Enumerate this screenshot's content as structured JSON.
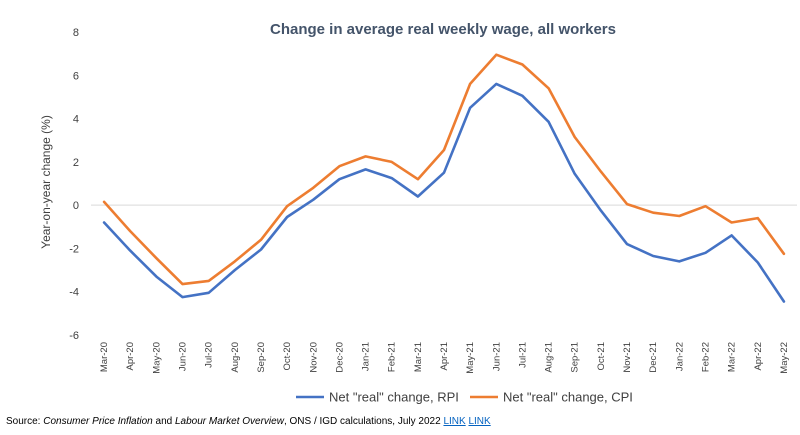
{
  "chart_data": {
    "type": "line",
    "title": "Change in average real weekly wage, all workers",
    "ylabel": "Year-on-year change (%)",
    "ylim": [
      -6,
      8
    ],
    "yticks": [
      -6,
      -4,
      -2,
      0,
      2,
      4,
      6,
      8
    ],
    "grid": false,
    "legend_position": "bottom",
    "categories": [
      "Mar-20",
      "Apr-20",
      "May-20",
      "Jun-20",
      "Jul-20",
      "Aug-20",
      "Sep-20",
      "Oct-20",
      "Nov-20",
      "Dec-20",
      "Jan-21",
      "Feb-21",
      "Mar-21",
      "Apr-21",
      "May-21",
      "Jun-21",
      "Jul-21",
      "Aug-21",
      "Sep-21",
      "Oct-21",
      "Nov-21",
      "Dec-21",
      "Jan-22",
      "Feb-22",
      "Mar-22",
      "Apr-22",
      "May-22"
    ],
    "series": [
      {
        "name": "Net \"real\" change, RPI",
        "color": "#4472c4",
        "values": [
          -0.8,
          -2.1,
          -3.3,
          -4.25,
          -4.05,
          -3.0,
          -2.05,
          -0.55,
          0.25,
          1.2,
          1.65,
          1.25,
          0.4,
          1.5,
          4.5,
          5.6,
          5.05,
          3.85,
          1.45,
          -0.25,
          -1.8,
          -2.35,
          -2.6,
          -2.2,
          -1.4,
          -2.65,
          -4.45
        ]
      },
      {
        "name": "Net \"real\" change, CPI",
        "color": "#ed7d31",
        "values": [
          0.15,
          -1.2,
          -2.45,
          -3.65,
          -3.5,
          -2.6,
          -1.6,
          -0.05,
          0.8,
          1.8,
          2.25,
          2.0,
          1.2,
          2.55,
          5.6,
          6.95,
          6.5,
          5.4,
          3.15,
          1.55,
          0.05,
          -0.35,
          -0.5,
          -0.05,
          -0.8,
          -0.6,
          -2.25
        ]
      }
    ]
  },
  "source": {
    "label": "Source: ",
    "pub1": "Consumer Price Inflation",
    "and": " and ",
    "pub2": "Labour Market Overview",
    "rest": ", ONS / IGD calculations, July 2022 ",
    "link1": "LINK",
    "link2": "LINK"
  }
}
